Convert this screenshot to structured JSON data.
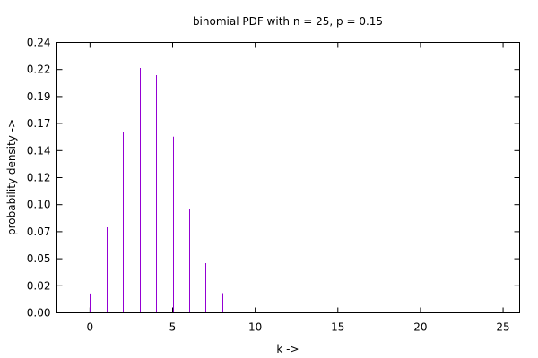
{
  "chart_data": {
    "type": "bar",
    "style": "impulses",
    "title": "binomial PDF with n = 25, p = 0.15",
    "xlabel": "k ->",
    "ylabel": "probability density ->",
    "xlim": [
      -2,
      26
    ],
    "ylim": [
      0,
      0.24
    ],
    "x_ticks": [
      {
        "value": 0,
        "label": "0"
      },
      {
        "value": 5,
        "label": "5"
      },
      {
        "value": 10,
        "label": "10"
      },
      {
        "value": 15,
        "label": "15"
      },
      {
        "value": 20,
        "label": "20"
      },
      {
        "value": 25,
        "label": "25"
      }
    ],
    "y_ticks": [
      {
        "value": 0.0,
        "label": "0.00"
      },
      {
        "value": 0.024,
        "label": "0.02"
      },
      {
        "value": 0.048,
        "label": "0.05"
      },
      {
        "value": 0.072,
        "label": "0.07"
      },
      {
        "value": 0.096,
        "label": "0.10"
      },
      {
        "value": 0.12,
        "label": "0.12"
      },
      {
        "value": 0.144,
        "label": "0.14"
      },
      {
        "value": 0.168,
        "label": "0.17"
      },
      {
        "value": 0.192,
        "label": "0.19"
      },
      {
        "value": 0.216,
        "label": "0.22"
      },
      {
        "value": 0.24,
        "label": "0.24"
      }
    ],
    "grid": false,
    "legend": "none",
    "color": "#9400d3",
    "x": [
      0,
      1,
      2,
      3,
      4,
      5,
      6,
      7,
      8,
      9,
      10,
      11
    ],
    "values": [
      0.0172,
      0.0759,
      0.1607,
      0.2174,
      0.211,
      0.1564,
      0.092,
      0.0441,
      0.0175,
      0.0058,
      0.0016,
      0.0004
    ]
  }
}
